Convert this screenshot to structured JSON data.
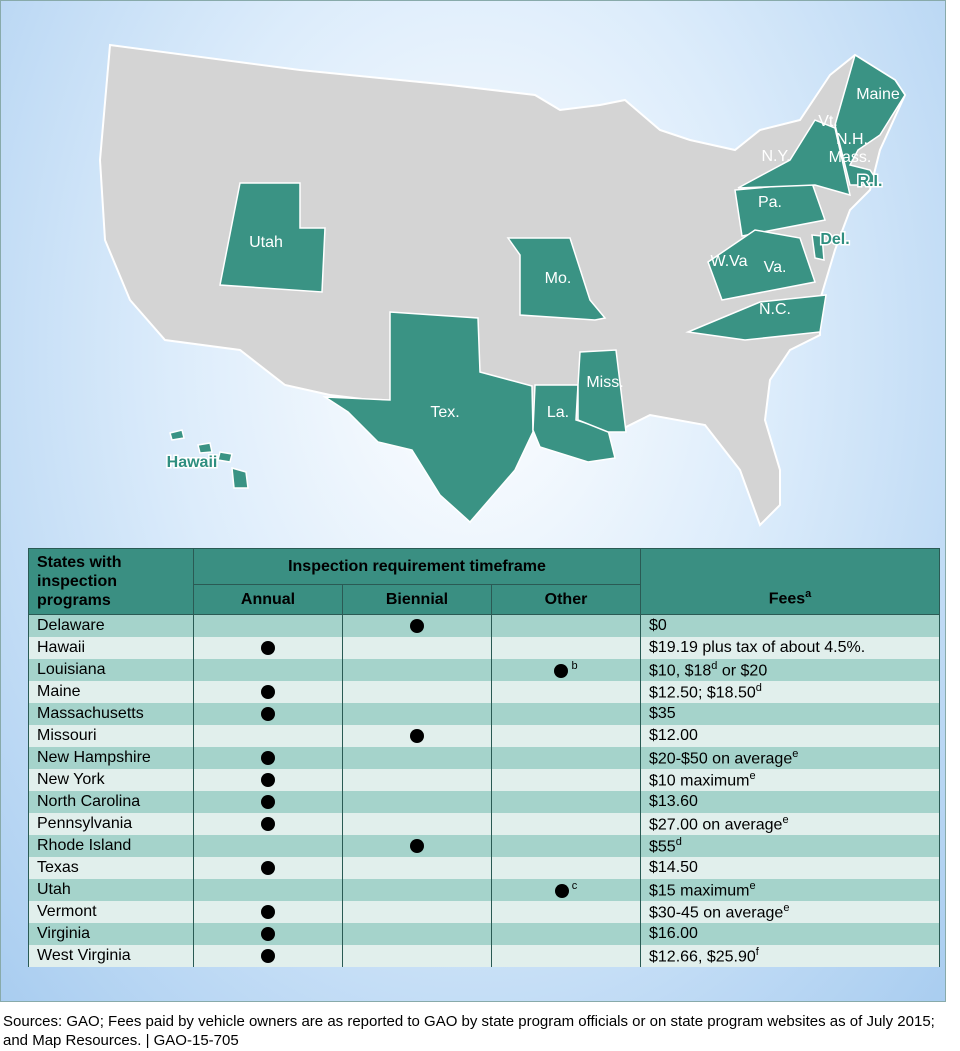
{
  "map": {
    "labels": [
      "Maine",
      "Vt.",
      "N.H.",
      "N.Y.",
      "Mass.",
      "R.I.",
      "Pa.",
      "Del.",
      "W.Va",
      "Va.",
      "Mo.",
      "N.C.",
      "Utah",
      "Tex.",
      "Miss.",
      "La.",
      "Hawaii"
    ]
  },
  "table": {
    "header": {
      "states": "States with inspection programs",
      "timeframe": "Inspection requirement timeframe",
      "columns": [
        "Annual",
        "Biennial",
        "Other"
      ],
      "fees": "Fees",
      "fees_sup": "a"
    },
    "rows": [
      {
        "state": "Delaware",
        "biennial": true,
        "fee": [
          {
            "text": "$0"
          }
        ]
      },
      {
        "state": "Hawaii",
        "annual": true,
        "fee": [
          {
            "text": "$19.19 plus tax of about 4.5%."
          }
        ]
      },
      {
        "state": "Louisiana",
        "other": true,
        "other_note": "b",
        "fee": [
          {
            "text": "$10, $18",
            "sup": "d"
          },
          {
            "text": " or $20"
          }
        ]
      },
      {
        "state": "Maine",
        "annual": true,
        "fee": [
          {
            "text": "$12.50; $18.50",
            "sup": "d"
          }
        ]
      },
      {
        "state": "Massachusetts",
        "annual": true,
        "fee": [
          {
            "text": "$35"
          }
        ]
      },
      {
        "state": "Missouri",
        "biennial": true,
        "fee": [
          {
            "text": "$12.00"
          }
        ]
      },
      {
        "state": "New Hampshire",
        "annual": true,
        "fee": [
          {
            "text": "$20-$50 on average",
            "sup": "e"
          }
        ]
      },
      {
        "state": "New York",
        "annual": true,
        "fee": [
          {
            "text": "$10 maximum",
            "sup": "e"
          }
        ]
      },
      {
        "state": "North Carolina",
        "annual": true,
        "fee": [
          {
            "text": "$13.60"
          }
        ]
      },
      {
        "state": "Pennsylvania",
        "annual": true,
        "fee": [
          {
            "text": "$27.00 on average",
            "sup": "e"
          }
        ]
      },
      {
        "state": "Rhode Island",
        "biennial": true,
        "fee": [
          {
            "text": "$55",
            "sup": "d"
          }
        ]
      },
      {
        "state": "Texas",
        "annual": true,
        "fee": [
          {
            "text": "$14.50"
          }
        ]
      },
      {
        "state": "Utah",
        "other": true,
        "other_note": "c",
        "fee": [
          {
            "text": "$15 maximum",
            "sup": "e"
          }
        ]
      },
      {
        "state": "Vermont",
        "annual": true,
        "fee": [
          {
            "text": "$30-45 on average",
            "sup": "e"
          }
        ]
      },
      {
        "state": "Virginia",
        "annual": true,
        "fee": [
          {
            "text": "$16.00"
          }
        ]
      },
      {
        "state": "West Virginia",
        "annual": true,
        "fee": [
          {
            "text": "$12.66, $25.90",
            "sup": "f"
          }
        ]
      }
    ]
  },
  "footer": {
    "source": "Sources: GAO; Fees paid by vehicle owners are as reported to GAO by state program officials or on state program websites as of July 2015; and Map Resources.  |  GAO-15-705"
  }
}
